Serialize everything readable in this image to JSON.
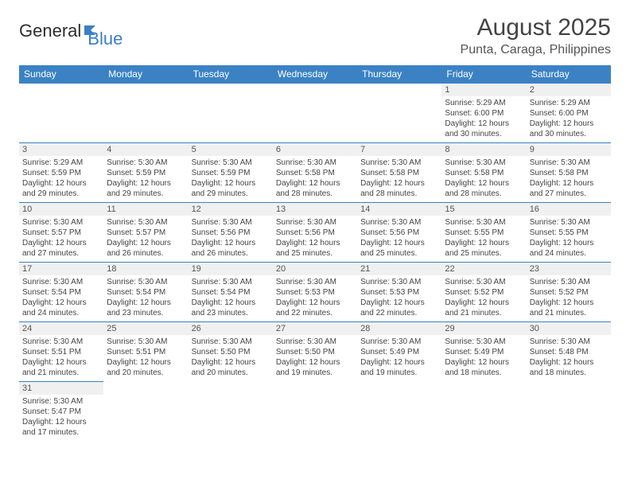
{
  "logo": {
    "part1": "General",
    "part2": "Blue"
  },
  "title": "August 2025",
  "location": "Punta, Caraga, Philippines",
  "colors": {
    "header_bg": "#3b82c4",
    "header_text": "#ffffff",
    "daynum_bg": "#f0f0f0",
    "cell_border": "#3b82c4",
    "page_bg": "#ffffff",
    "text": "#444444",
    "logo_blue": "#3b7fc4"
  },
  "typography": {
    "title_fontsize": 30,
    "location_fontsize": 16,
    "header_fontsize": 12,
    "cell_fontsize": 10,
    "font_family": "Arial"
  },
  "days_of_week": [
    "Sunday",
    "Monday",
    "Tuesday",
    "Wednesday",
    "Thursday",
    "Friday",
    "Saturday"
  ],
  "weeks": [
    [
      null,
      null,
      null,
      null,
      null,
      {
        "n": "1",
        "sr": "Sunrise: 5:29 AM",
        "ss": "Sunset: 6:00 PM",
        "d1": "Daylight: 12 hours",
        "d2": "and 30 minutes."
      },
      {
        "n": "2",
        "sr": "Sunrise: 5:29 AM",
        "ss": "Sunset: 6:00 PM",
        "d1": "Daylight: 12 hours",
        "d2": "and 30 minutes."
      }
    ],
    [
      {
        "n": "3",
        "sr": "Sunrise: 5:29 AM",
        "ss": "Sunset: 5:59 PM",
        "d1": "Daylight: 12 hours",
        "d2": "and 29 minutes."
      },
      {
        "n": "4",
        "sr": "Sunrise: 5:30 AM",
        "ss": "Sunset: 5:59 PM",
        "d1": "Daylight: 12 hours",
        "d2": "and 29 minutes."
      },
      {
        "n": "5",
        "sr": "Sunrise: 5:30 AM",
        "ss": "Sunset: 5:59 PM",
        "d1": "Daylight: 12 hours",
        "d2": "and 29 minutes."
      },
      {
        "n": "6",
        "sr": "Sunrise: 5:30 AM",
        "ss": "Sunset: 5:58 PM",
        "d1": "Daylight: 12 hours",
        "d2": "and 28 minutes."
      },
      {
        "n": "7",
        "sr": "Sunrise: 5:30 AM",
        "ss": "Sunset: 5:58 PM",
        "d1": "Daylight: 12 hours",
        "d2": "and 28 minutes."
      },
      {
        "n": "8",
        "sr": "Sunrise: 5:30 AM",
        "ss": "Sunset: 5:58 PM",
        "d1": "Daylight: 12 hours",
        "d2": "and 28 minutes."
      },
      {
        "n": "9",
        "sr": "Sunrise: 5:30 AM",
        "ss": "Sunset: 5:58 PM",
        "d1": "Daylight: 12 hours",
        "d2": "and 27 minutes."
      }
    ],
    [
      {
        "n": "10",
        "sr": "Sunrise: 5:30 AM",
        "ss": "Sunset: 5:57 PM",
        "d1": "Daylight: 12 hours",
        "d2": "and 27 minutes."
      },
      {
        "n": "11",
        "sr": "Sunrise: 5:30 AM",
        "ss": "Sunset: 5:57 PM",
        "d1": "Daylight: 12 hours",
        "d2": "and 26 minutes."
      },
      {
        "n": "12",
        "sr": "Sunrise: 5:30 AM",
        "ss": "Sunset: 5:56 PM",
        "d1": "Daylight: 12 hours",
        "d2": "and 26 minutes."
      },
      {
        "n": "13",
        "sr": "Sunrise: 5:30 AM",
        "ss": "Sunset: 5:56 PM",
        "d1": "Daylight: 12 hours",
        "d2": "and 25 minutes."
      },
      {
        "n": "14",
        "sr": "Sunrise: 5:30 AM",
        "ss": "Sunset: 5:56 PM",
        "d1": "Daylight: 12 hours",
        "d2": "and 25 minutes."
      },
      {
        "n": "15",
        "sr": "Sunrise: 5:30 AM",
        "ss": "Sunset: 5:55 PM",
        "d1": "Daylight: 12 hours",
        "d2": "and 25 minutes."
      },
      {
        "n": "16",
        "sr": "Sunrise: 5:30 AM",
        "ss": "Sunset: 5:55 PM",
        "d1": "Daylight: 12 hours",
        "d2": "and 24 minutes."
      }
    ],
    [
      {
        "n": "17",
        "sr": "Sunrise: 5:30 AM",
        "ss": "Sunset: 5:54 PM",
        "d1": "Daylight: 12 hours",
        "d2": "and 24 minutes."
      },
      {
        "n": "18",
        "sr": "Sunrise: 5:30 AM",
        "ss": "Sunset: 5:54 PM",
        "d1": "Daylight: 12 hours",
        "d2": "and 23 minutes."
      },
      {
        "n": "19",
        "sr": "Sunrise: 5:30 AM",
        "ss": "Sunset: 5:54 PM",
        "d1": "Daylight: 12 hours",
        "d2": "and 23 minutes."
      },
      {
        "n": "20",
        "sr": "Sunrise: 5:30 AM",
        "ss": "Sunset: 5:53 PM",
        "d1": "Daylight: 12 hours",
        "d2": "and 22 minutes."
      },
      {
        "n": "21",
        "sr": "Sunrise: 5:30 AM",
        "ss": "Sunset: 5:53 PM",
        "d1": "Daylight: 12 hours",
        "d2": "and 22 minutes."
      },
      {
        "n": "22",
        "sr": "Sunrise: 5:30 AM",
        "ss": "Sunset: 5:52 PM",
        "d1": "Daylight: 12 hours",
        "d2": "and 21 minutes."
      },
      {
        "n": "23",
        "sr": "Sunrise: 5:30 AM",
        "ss": "Sunset: 5:52 PM",
        "d1": "Daylight: 12 hours",
        "d2": "and 21 minutes."
      }
    ],
    [
      {
        "n": "24",
        "sr": "Sunrise: 5:30 AM",
        "ss": "Sunset: 5:51 PM",
        "d1": "Daylight: 12 hours",
        "d2": "and 21 minutes."
      },
      {
        "n": "25",
        "sr": "Sunrise: 5:30 AM",
        "ss": "Sunset: 5:51 PM",
        "d1": "Daylight: 12 hours",
        "d2": "and 20 minutes."
      },
      {
        "n": "26",
        "sr": "Sunrise: 5:30 AM",
        "ss": "Sunset: 5:50 PM",
        "d1": "Daylight: 12 hours",
        "d2": "and 20 minutes."
      },
      {
        "n": "27",
        "sr": "Sunrise: 5:30 AM",
        "ss": "Sunset: 5:50 PM",
        "d1": "Daylight: 12 hours",
        "d2": "and 19 minutes."
      },
      {
        "n": "28",
        "sr": "Sunrise: 5:30 AM",
        "ss": "Sunset: 5:49 PM",
        "d1": "Daylight: 12 hours",
        "d2": "and 19 minutes."
      },
      {
        "n": "29",
        "sr": "Sunrise: 5:30 AM",
        "ss": "Sunset: 5:49 PM",
        "d1": "Daylight: 12 hours",
        "d2": "and 18 minutes."
      },
      {
        "n": "30",
        "sr": "Sunrise: 5:30 AM",
        "ss": "Sunset: 5:48 PM",
        "d1": "Daylight: 12 hours",
        "d2": "and 18 minutes."
      }
    ],
    [
      {
        "n": "31",
        "sr": "Sunrise: 5:30 AM",
        "ss": "Sunset: 5:47 PM",
        "d1": "Daylight: 12 hours",
        "d2": "and 17 minutes."
      },
      null,
      null,
      null,
      null,
      null,
      null
    ]
  ]
}
